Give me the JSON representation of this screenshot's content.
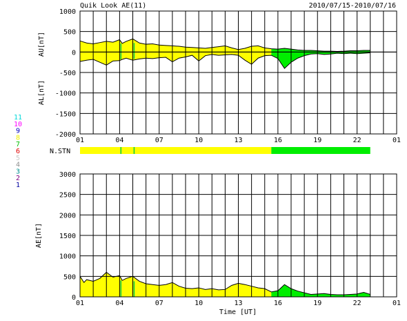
{
  "header": {
    "title": "Quik Look AE(11)",
    "date_range": "2010/07/15-2010/07/16"
  },
  "station_legend": {
    "items": [
      {
        "label": "11",
        "color": "#00d8d8"
      },
      {
        "label": "10",
        "color": "#ff00ff"
      },
      {
        "label": "9",
        "color": "#0000c0"
      },
      {
        "label": "8",
        "color": "#f0f000"
      },
      {
        "label": "7",
        "color": "#00c000"
      },
      {
        "label": "6",
        "color": "#e00000"
      },
      {
        "label": "5",
        "color": "#c8c8c8"
      },
      {
        "label": "4",
        "color": "#909090"
      },
      {
        "label": "3",
        "color": "#009090"
      },
      {
        "label": "2",
        "color": "#800080"
      },
      {
        "label": "1",
        "color": "#0000a0"
      }
    ]
  },
  "nstn": {
    "label": "N.STN",
    "segments": [
      {
        "start": 0,
        "end": 14.5,
        "color": "#ffff00"
      },
      {
        "start": 14.5,
        "end": 22,
        "color": "#00ee00"
      }
    ],
    "markers": [
      3.1,
      4.1
    ],
    "marker_color": "#00cc44"
  },
  "x_axis": {
    "tick_labels": [
      "01",
      "04",
      "07",
      "10",
      "13",
      "16",
      "19",
      "22",
      "01"
    ],
    "tick_hours": [
      0,
      3,
      6,
      9,
      12,
      15,
      18,
      21,
      24
    ],
    "xlabel": "Time [UT]"
  },
  "colors": {
    "fill_primary": "#ffff00",
    "fill_secondary": "#00ee00",
    "marker": "#00cc44",
    "outline": "#000000",
    "grid": "#000000"
  },
  "chart_data": [
    {
      "type": "area",
      "title": "AU/AL",
      "ylabel_top": "AU[nT]",
      "ylabel_bottom": "AL[nT]",
      "ylim": [
        -2000,
        1000
      ],
      "yticks": [
        1000,
        500,
        0,
        -500,
        -1000,
        -1500,
        -2000
      ],
      "grid": true,
      "x_unit": "hours since 2010/07/15 01 UT",
      "green_from_hour": 14.5,
      "markers": [
        3.1,
        4.1
      ],
      "series": [
        {
          "name": "AU",
          "x": [
            0,
            0.5,
            1,
            1.5,
            2,
            2.5,
            3,
            3.2,
            3.5,
            4,
            4.5,
            5,
            5.5,
            6,
            6.5,
            7,
            7.5,
            8,
            8.5,
            9,
            9.5,
            10,
            10.5,
            11,
            11.5,
            12,
            12.5,
            13,
            13.5,
            14,
            14.5,
            15,
            15.5,
            16,
            16.5,
            17,
            17.5,
            18,
            18.5,
            19,
            19.5,
            20,
            20.5,
            21,
            21.5,
            22
          ],
          "values": [
            270,
            220,
            200,
            230,
            260,
            240,
            300,
            210,
            260,
            320,
            220,
            190,
            200,
            170,
            160,
            150,
            140,
            120,
            110,
            100,
            90,
            110,
            130,
            150,
            100,
            60,
            90,
            140,
            150,
            100,
            80,
            70,
            90,
            70,
            50,
            40,
            40,
            30,
            20,
            20,
            15,
            20,
            30,
            30,
            40,
            40
          ]
        },
        {
          "name": "AL",
          "x": [
            0,
            0.5,
            1,
            1.5,
            2,
            2.5,
            3,
            3.2,
            3.5,
            4,
            4.5,
            5,
            5.5,
            6,
            6.5,
            7,
            7.5,
            8,
            8.5,
            9,
            9.5,
            10,
            10.5,
            11,
            11.5,
            12,
            12.5,
            13,
            13.5,
            14,
            14.5,
            15,
            15.5,
            16,
            16.5,
            17,
            17.5,
            18,
            18.5,
            19,
            19.5,
            20,
            20.5,
            21,
            21.5,
            22
          ],
          "values": [
            -230,
            -200,
            -180,
            -250,
            -320,
            -220,
            -210,
            -180,
            -150,
            -200,
            -170,
            -150,
            -160,
            -140,
            -130,
            -240,
            -150,
            -120,
            -80,
            -220,
            -90,
            -60,
            -80,
            -70,
            -60,
            -80,
            -200,
            -300,
            -150,
            -90,
            -80,
            -160,
            -400,
            -250,
            -150,
            -90,
            -50,
            -40,
            -60,
            -50,
            -30,
            -40,
            -30,
            -40,
            -30,
            -20
          ]
        }
      ]
    },
    {
      "type": "area",
      "title": "AE",
      "ylabel": "AE[nT]",
      "ylim": [
        0,
        3000
      ],
      "yticks": [
        3000,
        2500,
        2000,
        1500,
        1000,
        500,
        0
      ],
      "grid": true,
      "x_unit": "hours since 2010/07/15 01 UT",
      "green_from_hour": 14.5,
      "markers": [
        3.1,
        4.1
      ],
      "series": [
        {
          "name": "AE",
          "x": [
            0,
            0.3,
            0.5,
            1,
            1.5,
            2,
            2.5,
            3,
            3.2,
            3.5,
            4,
            4.5,
            5,
            5.5,
            6,
            6.5,
            7,
            7.5,
            8,
            8.5,
            9,
            9.5,
            10,
            10.5,
            11,
            11.5,
            12,
            12.5,
            13,
            13.5,
            14,
            14.5,
            15,
            15.5,
            16,
            16.5,
            17,
            17.5,
            18,
            18.5,
            19,
            19.5,
            20,
            20.5,
            21,
            21.5,
            22
          ],
          "values": [
            500,
            350,
            420,
            380,
            450,
            600,
            480,
            520,
            400,
            450,
            500,
            380,
            320,
            300,
            280,
            300,
            350,
            260,
            210,
            200,
            220,
            180,
            200,
            170,
            180,
            280,
            330,
            300,
            260,
            220,
            200,
            120,
            150,
            300,
            200,
            140,
            100,
            60,
            70,
            80,
            60,
            50,
            50,
            60,
            70,
            110,
            60
          ]
        }
      ]
    }
  ]
}
